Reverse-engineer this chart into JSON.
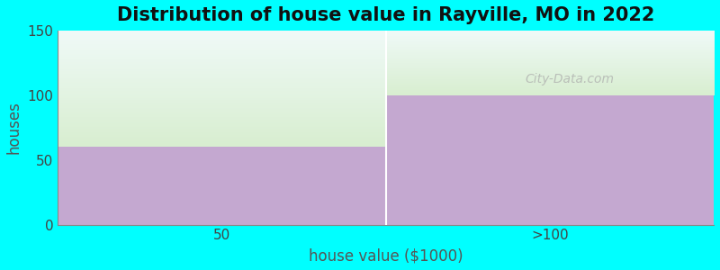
{
  "title": "Distribution of house value in Rayville, MO in 2022",
  "xlabel": "house value ($1000)",
  "ylabel": "houses",
  "categories": [
    "50",
    ">100"
  ],
  "values": [
    60,
    100
  ],
  "ylim": [
    0,
    150
  ],
  "yticks": [
    0,
    50,
    100,
    150
  ],
  "bar_color": "#C4A8D0",
  "above_bar_color_bottom": "#D8EED0",
  "above_bar_color_top": "#F0FAF8",
  "background_color": "#00FFFF",
  "title_fontsize": 15,
  "axis_label_fontsize": 12,
  "tick_fontsize": 11,
  "watermark_text": "City-Data.com"
}
